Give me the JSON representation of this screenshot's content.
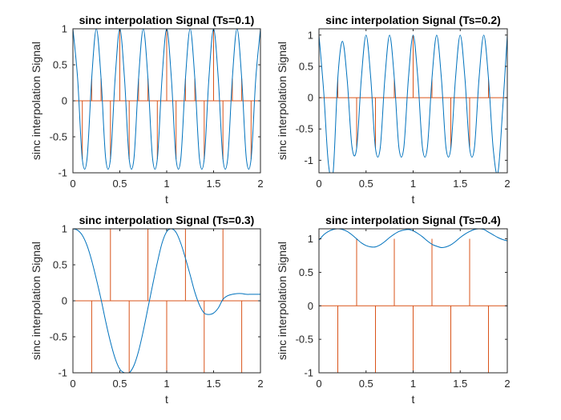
{
  "chart_data": [
    {
      "type": "line",
      "title": "sinc interpolation Signal  (Ts=0.1)",
      "xlabel": "t",
      "ylabel": "sinc interpolation Signal",
      "xlim": [
        0,
        2
      ],
      "ylim": [
        -1,
        1
      ],
      "xticks": [
        "0",
        "0.5",
        "1",
        "1.5",
        "2"
      ],
      "yticks": [
        "-1",
        "-0.5",
        "0",
        "0.5",
        "1"
      ],
      "ytick_values": [
        -1,
        -0.5,
        0,
        0.5,
        1
      ],
      "series": [
        {
          "kind": "curve",
          "color": "#0072BD",
          "x": [
            0,
            0.05,
            0.1,
            0.15,
            0.2,
            0.25,
            0.3,
            0.35,
            0.4,
            0.45,
            0.5,
            0.55,
            0.6,
            0.65,
            0.7,
            0.75,
            0.8,
            0.85,
            0.9,
            0.95,
            1.0,
            1.05,
            1.1,
            1.15,
            1.2,
            1.25,
            1.3,
            1.35,
            1.4,
            1.45,
            1.5,
            1.55,
            1.6,
            1.65,
            1.7,
            1.75,
            1.8,
            1.85,
            1.9,
            1.95,
            2.0
          ],
          "y": [
            1.0,
            0.31,
            -0.81,
            -0.81,
            0.31,
            1.0,
            0.31,
            -0.81,
            -0.81,
            0.31,
            1.0,
            0.31,
            -0.81,
            -0.81,
            0.31,
            1.0,
            0.31,
            -0.81,
            -0.81,
            0.31,
            1.0,
            0.31,
            -0.81,
            -0.81,
            0.31,
            1.0,
            0.31,
            -0.81,
            -0.81,
            0.31,
            1.0,
            0.31,
            -0.81,
            -0.81,
            0.31,
            1.0,
            0.31,
            -0.81,
            -0.81,
            0.31,
            1.0
          ]
        },
        {
          "kind": "stem",
          "color": "#D95319",
          "x": [
            0,
            0.1,
            0.2,
            0.3,
            0.4,
            0.5,
            0.6,
            0.7,
            0.8,
            0.9,
            1.0,
            1.1,
            1.2,
            1.3,
            1.4,
            1.5,
            1.6,
            1.7,
            1.8,
            1.9,
            2.0
          ],
          "y": [
            1.0,
            -0.81,
            0.31,
            0.31,
            -0.81,
            1.0,
            -0.81,
            0.31,
            0.31,
            -0.81,
            1.0,
            -0.81,
            0.31,
            0.31,
            -0.81,
            1.0,
            -0.81,
            0.31,
            0.31,
            -0.81,
            1.0
          ]
        }
      ]
    },
    {
      "type": "line",
      "title": "sinc interpolation Signal  (Ts=0.2)",
      "xlabel": "t",
      "ylabel": "sinc interpolation Signal",
      "xlim": [
        0,
        2
      ],
      "ylim": [
        -1.2,
        1.1
      ],
      "xticks": [
        "0",
        "0.5",
        "1",
        "1.5",
        "2"
      ],
      "yticks": [
        "-1",
        "-0.5",
        "0",
        "0.5",
        "1"
      ],
      "ytick_values": [
        -1,
        -0.5,
        0,
        0.5,
        1
      ],
      "series": [
        {
          "kind": "curve",
          "color": "#0072BD",
          "x": [
            0,
            0.05,
            0.1,
            0.15,
            0.2,
            0.25,
            0.3,
            0.35,
            0.4,
            0.45,
            0.5,
            0.55,
            0.6,
            0.65,
            0.7,
            0.75,
            0.8,
            0.85,
            0.9,
            0.95,
            1.0,
            1.05,
            1.1,
            1.15,
            1.2,
            1.25,
            1.3,
            1.35,
            1.4,
            1.45,
            1.5,
            1.55,
            1.6,
            1.65,
            1.7,
            1.75,
            1.8,
            1.85,
            1.9,
            1.95,
            2.0
          ],
          "y": [
            1.0,
            0.1,
            -1.05,
            -1.2,
            0.31,
            0.9,
            0.28,
            -0.78,
            -0.81,
            0.31,
            1.0,
            0.31,
            -0.81,
            -0.81,
            0.31,
            1.0,
            0.31,
            -0.81,
            -0.81,
            0.31,
            1.0,
            0.31,
            -0.81,
            -0.81,
            0.31,
            1.0,
            0.31,
            -0.81,
            -0.81,
            0.31,
            1.0,
            0.31,
            -0.81,
            -0.81,
            0.31,
            1.0,
            0.31,
            -0.81,
            -1.2,
            -0.2,
            1.0
          ]
        },
        {
          "kind": "stem",
          "color": "#D95319",
          "x": [
            0,
            0.2,
            0.4,
            0.6,
            0.8,
            1.0,
            1.2,
            1.4,
            1.6,
            1.8,
            2.0
          ],
          "y": [
            1.0,
            0.31,
            -0.81,
            -0.81,
            0.31,
            1.0,
            0.31,
            -0.81,
            -0.81,
            0.31,
            1.0
          ]
        }
      ]
    },
    {
      "type": "line",
      "title": "sinc interpolation Signal  (Ts=0.3)",
      "xlabel": "t",
      "ylabel": "sinc interpolation Signal",
      "xlim": [
        0,
        2
      ],
      "ylim": [
        -1,
        1
      ],
      "xticks": [
        "0",
        "0.5",
        "1",
        "1.5",
        "2"
      ],
      "yticks": [
        "-1",
        "-0.5",
        "0",
        "0.5",
        "1"
      ],
      "ytick_values": [
        -1,
        -0.5,
        0,
        0.5,
        1
      ],
      "series": [
        {
          "kind": "curve",
          "color": "#0072BD",
          "x": [
            0,
            0.05,
            0.1,
            0.15,
            0.2,
            0.25,
            0.3,
            0.35,
            0.4,
            0.45,
            0.5,
            0.55,
            0.6,
            0.65,
            0.7,
            0.75,
            0.8,
            0.85,
            0.9,
            0.95,
            1.0,
            1.05,
            1.1,
            1.15,
            1.2,
            1.25,
            1.3,
            1.35,
            1.4,
            1.45,
            1.5,
            1.55,
            1.6,
            1.65,
            1.7,
            1.75,
            1.8,
            1.85,
            1.9,
            1.95,
            2.0
          ],
          "y": [
            1.0,
            0.98,
            0.91,
            0.77,
            0.56,
            0.3,
            0.02,
            -0.29,
            -0.57,
            -0.8,
            -0.95,
            -1.0,
            -1.0,
            -0.9,
            -0.7,
            -0.42,
            -0.1,
            0.22,
            0.53,
            0.8,
            0.96,
            1.0,
            0.95,
            0.8,
            0.59,
            0.36,
            0.12,
            -0.06,
            -0.17,
            -0.19,
            -0.17,
            -0.1,
            0.02,
            0.07,
            0.09,
            0.1,
            0.1,
            0.09,
            0.09,
            0.09,
            0.09
          ]
        },
        {
          "kind": "stem",
          "color": "#D95319",
          "x": [
            0,
            0.2,
            0.4,
            0.6,
            0.8,
            1.0,
            1.2,
            1.4,
            1.6,
            1.8,
            2.0
          ],
          "y": [
            1.0,
            -1.0,
            1.0,
            -1.0,
            1.0,
            -1.0,
            1.0,
            -1.0,
            1.0,
            -1.0,
            1.0
          ]
        }
      ]
    },
    {
      "type": "line",
      "title": "sinc interpolation Signal  (Ts=0.4)",
      "xlabel": "t",
      "ylabel": "sinc interpolation Signal",
      "xlim": [
        0,
        2
      ],
      "ylim": [
        -1,
        1.15
      ],
      "xticks": [
        "0",
        "0.5",
        "1",
        "1.5",
        "2"
      ],
      "yticks": [
        "-1",
        "-0.5",
        "0",
        "0.5",
        "1"
      ],
      "ytick_values": [
        -1,
        -0.5,
        0,
        0.5,
        1
      ],
      "series": [
        {
          "kind": "curve",
          "color": "#0072BD",
          "x": [
            0,
            0.05,
            0.1,
            0.15,
            0.2,
            0.25,
            0.3,
            0.35,
            0.4,
            0.45,
            0.5,
            0.55,
            0.6,
            0.65,
            0.7,
            0.75,
            0.8,
            0.85,
            0.9,
            0.95,
            1.0,
            1.05,
            1.1,
            1.15,
            1.2,
            1.25,
            1.3,
            1.35,
            1.4,
            1.45,
            1.5,
            1.55,
            1.6,
            1.65,
            1.7,
            1.75,
            1.8,
            1.85,
            1.9,
            1.95,
            2.0
          ],
          "y": [
            0.98,
            1.06,
            1.11,
            1.14,
            1.15,
            1.14,
            1.11,
            1.06,
            1.0,
            0.94,
            0.9,
            0.88,
            0.88,
            0.91,
            0.96,
            1.02,
            1.07,
            1.11,
            1.13,
            1.14,
            1.12,
            1.08,
            1.03,
            0.97,
            0.92,
            0.89,
            0.87,
            0.88,
            0.91,
            0.96,
            1.02,
            1.07,
            1.11,
            1.14,
            1.15,
            1.14,
            1.1,
            1.06,
            1.02,
            0.99,
            0.97
          ]
        },
        {
          "kind": "stem",
          "color": "#D95319",
          "x": [
            0,
            0.2,
            0.4,
            0.6,
            0.8,
            1.0,
            1.2,
            1.4,
            1.6,
            1.8,
            2.0
          ],
          "y": [
            1.0,
            -1.0,
            1.0,
            -1.0,
            1.0,
            -1.0,
            1.0,
            -1.0,
            1.0,
            -1.0,
            1.0
          ]
        }
      ]
    }
  ]
}
